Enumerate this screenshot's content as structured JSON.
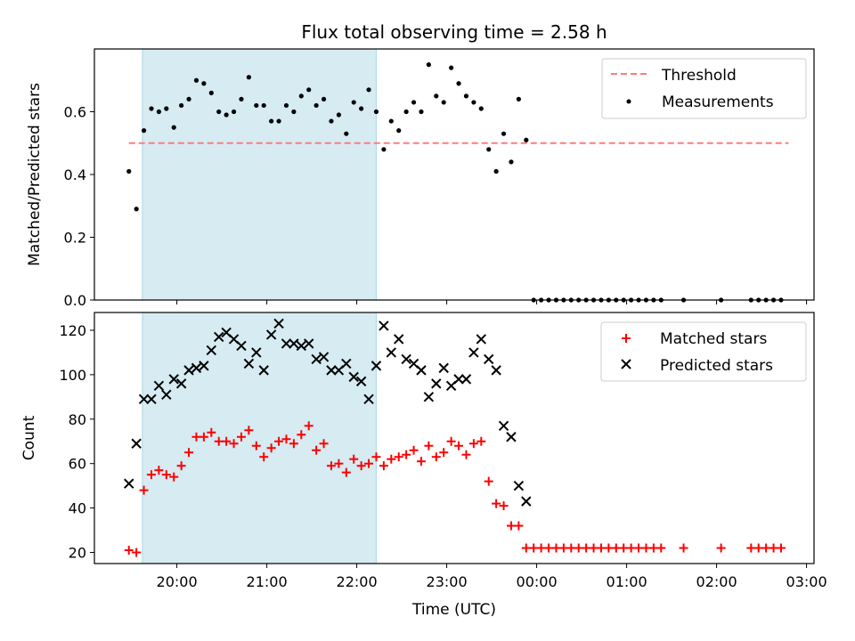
{
  "title": "Flux total observing time = 2.58 h",
  "xlabel": "Time (UTC)",
  "x_tick_labels": [
    "20:00",
    "21:00",
    "22:00",
    "23:00",
    "00:00",
    "01:00",
    "02:00",
    "03:00"
  ],
  "colors": {
    "threshold": "#ff7b7b",
    "measurements": "#000000",
    "matched": "#ff0000",
    "predicted": "#000000",
    "highlight": "#add8e6"
  },
  "chart_data": [
    {
      "type": "scatter",
      "title": "Flux total observing time = 2.58 h",
      "xlabel": "",
      "ylabel": "Matched/Predicted stars",
      "xlim": [
        "19:05",
        "03:05"
      ],
      "ylim": [
        0,
        0.8
      ],
      "y_ticks": [
        "0.0",
        "0.2",
        "0.4",
        "0.6"
      ],
      "x_tick_labels": [
        "20:00",
        "21:00",
        "22:00",
        "23:00",
        "00:00",
        "01:00",
        "02:00",
        "03:00"
      ],
      "legend_position": "top-right",
      "highlight_span": [
        "19:37",
        "22:13"
      ],
      "threshold": {
        "name": "Threshold",
        "value": 0.5,
        "x_range": [
          "19:28",
          "02:48"
        ]
      },
      "series": [
        {
          "name": "Measurements",
          "points": [
            [
              "19:28",
              0.41
            ],
            [
              "19:33",
              0.29
            ],
            [
              "19:38",
              0.54
            ],
            [
              "19:43",
              0.61
            ],
            [
              "19:48",
              0.6
            ],
            [
              "19:53",
              0.61
            ],
            [
              "19:58",
              0.55
            ],
            [
              "20:03",
              0.62
            ],
            [
              "20:08",
              0.64
            ],
            [
              "20:13",
              0.7
            ],
            [
              "20:18",
              0.69
            ],
            [
              "20:23",
              0.66
            ],
            [
              "20:28",
              0.6
            ],
            [
              "20:33",
              0.59
            ],
            [
              "20:38",
              0.6
            ],
            [
              "20:43",
              0.64
            ],
            [
              "20:48",
              0.71
            ],
            [
              "20:53",
              0.62
            ],
            [
              "20:58",
              0.62
            ],
            [
              "21:03",
              0.57
            ],
            [
              "21:08",
              0.57
            ],
            [
              "21:13",
              0.62
            ],
            [
              "21:18",
              0.6
            ],
            [
              "21:23",
              0.65
            ],
            [
              "21:28",
              0.67
            ],
            [
              "21:33",
              0.62
            ],
            [
              "21:38",
              0.64
            ],
            [
              "21:43",
              0.57
            ],
            [
              "21:48",
              0.59
            ],
            [
              "21:53",
              0.53
            ],
            [
              "21:58",
              0.63
            ],
            [
              "22:03",
              0.61
            ],
            [
              "22:08",
              0.67
            ],
            [
              "22:13",
              0.6
            ],
            [
              "22:18",
              0.48
            ],
            [
              "22:23",
              0.57
            ],
            [
              "22:28",
              0.54
            ],
            [
              "22:33",
              0.6
            ],
            [
              "22:38",
              0.63
            ],
            [
              "22:43",
              0.6
            ],
            [
              "22:48",
              0.75
            ],
            [
              "22:53",
              0.65
            ],
            [
              "22:58",
              0.63
            ],
            [
              "23:03",
              0.74
            ],
            [
              "23:08",
              0.69
            ],
            [
              "23:13",
              0.65
            ],
            [
              "23:18",
              0.63
            ],
            [
              "23:23",
              0.61
            ],
            [
              "23:28",
              0.48
            ],
            [
              "23:33",
              0.41
            ],
            [
              "23:38",
              0.53
            ],
            [
              "23:43",
              0.44
            ],
            [
              "23:48",
              0.64
            ],
            [
              "23:53",
              0.51
            ],
            [
              "23:58",
              0
            ],
            [
              "00:03",
              0
            ],
            [
              "00:08",
              0
            ],
            [
              "00:13",
              0
            ],
            [
              "00:18",
              0
            ],
            [
              "00:23",
              0
            ],
            [
              "00:28",
              0
            ],
            [
              "00:33",
              0
            ],
            [
              "00:38",
              0
            ],
            [
              "00:43",
              0
            ],
            [
              "00:48",
              0
            ],
            [
              "00:53",
              0
            ],
            [
              "00:58",
              0
            ],
            [
              "01:03",
              0
            ],
            [
              "01:08",
              0
            ],
            [
              "01:13",
              0
            ],
            [
              "01:18",
              0
            ],
            [
              "01:23",
              0
            ],
            [
              "01:38",
              0
            ],
            [
              "02:03",
              0
            ],
            [
              "02:23",
              0
            ],
            [
              "02:28",
              0
            ],
            [
              "02:33",
              0
            ],
            [
              "02:38",
              0
            ],
            [
              "02:43",
              0
            ]
          ]
        }
      ]
    },
    {
      "type": "scatter",
      "title": "",
      "xlabel": "Time (UTC)",
      "ylabel": "Count",
      "xlim": [
        "19:05",
        "03:05"
      ],
      "ylim": [
        15,
        128
      ],
      "y_ticks": [
        "20",
        "40",
        "60",
        "80",
        "100",
        "120"
      ],
      "x_tick_labels": [
        "20:00",
        "21:00",
        "22:00",
        "23:00",
        "00:00",
        "01:00",
        "02:00",
        "03:00"
      ],
      "legend_position": "top-right",
      "highlight_span": [
        "19:37",
        "22:13"
      ],
      "series": [
        {
          "name": "Matched stars",
          "marker": "+",
          "points": [
            [
              "19:28",
              21
            ],
            [
              "19:33",
              20
            ],
            [
              "19:38",
              48
            ],
            [
              "19:43",
              55
            ],
            [
              "19:48",
              57
            ],
            [
              "19:53",
              55
            ],
            [
              "19:58",
              54
            ],
            [
              "20:03",
              59
            ],
            [
              "20:08",
              65
            ],
            [
              "20:13",
              72
            ],
            [
              "20:18",
              72
            ],
            [
              "20:23",
              74
            ],
            [
              "20:28",
              70
            ],
            [
              "20:33",
              70
            ],
            [
              "20:38",
              69
            ],
            [
              "20:43",
              72
            ],
            [
              "20:48",
              75
            ],
            [
              "20:53",
              68
            ],
            [
              "20:58",
              63
            ],
            [
              "21:03",
              67
            ],
            [
              "21:08",
              70
            ],
            [
              "21:13",
              71
            ],
            [
              "21:18",
              69
            ],
            [
              "21:23",
              73
            ],
            [
              "21:28",
              77
            ],
            [
              "21:33",
              66
            ],
            [
              "21:38",
              69
            ],
            [
              "21:43",
              59
            ],
            [
              "21:48",
              60
            ],
            [
              "21:53",
              56
            ],
            [
              "21:58",
              62
            ],
            [
              "22:03",
              59
            ],
            [
              "22:08",
              60
            ],
            [
              "22:13",
              63
            ],
            [
              "22:18",
              59
            ],
            [
              "22:23",
              62
            ],
            [
              "22:28",
              63
            ],
            [
              "22:33",
              64
            ],
            [
              "22:38",
              66
            ],
            [
              "22:43",
              61
            ],
            [
              "22:48",
              68
            ],
            [
              "22:53",
              63
            ],
            [
              "22:58",
              65
            ],
            [
              "23:03",
              70
            ],
            [
              "23:08",
              68
            ],
            [
              "23:13",
              64
            ],
            [
              "23:18",
              69
            ],
            [
              "23:23",
              70
            ],
            [
              "23:28",
              52
            ],
            [
              "23:33",
              42
            ],
            [
              "23:38",
              41
            ],
            [
              "23:43",
              32
            ],
            [
              "23:48",
              32
            ],
            [
              "23:53",
              22
            ],
            [
              "23:58",
              22
            ],
            [
              "00:03",
              22
            ],
            [
              "00:08",
              22
            ],
            [
              "00:13",
              22
            ],
            [
              "00:18",
              22
            ],
            [
              "00:23",
              22
            ],
            [
              "00:28",
              22
            ],
            [
              "00:33",
              22
            ],
            [
              "00:38",
              22
            ],
            [
              "00:43",
              22
            ],
            [
              "00:48",
              22
            ],
            [
              "00:53",
              22
            ],
            [
              "00:58",
              22
            ],
            [
              "01:03",
              22
            ],
            [
              "01:08",
              22
            ],
            [
              "01:13",
              22
            ],
            [
              "01:18",
              22
            ],
            [
              "01:23",
              22
            ],
            [
              "01:38",
              22
            ],
            [
              "02:03",
              22
            ],
            [
              "02:23",
              22
            ],
            [
              "02:28",
              22
            ],
            [
              "02:33",
              22
            ],
            [
              "02:38",
              22
            ],
            [
              "02:43",
              22
            ]
          ]
        },
        {
          "name": "Predicted stars",
          "marker": "x",
          "points": [
            [
              "19:28",
              51
            ],
            [
              "19:33",
              69
            ],
            [
              "19:38",
              89
            ],
            [
              "19:43",
              89
            ],
            [
              "19:48",
              95
            ],
            [
              "19:53",
              91
            ],
            [
              "19:58",
              98
            ],
            [
              "20:03",
              96
            ],
            [
              "20:08",
              102
            ],
            [
              "20:13",
              103
            ],
            [
              "20:18",
              104
            ],
            [
              "20:23",
              111
            ],
            [
              "20:28",
              117
            ],
            [
              "20:33",
              119
            ],
            [
              "20:38",
              116
            ],
            [
              "20:43",
              113
            ],
            [
              "20:48",
              105
            ],
            [
              "20:53",
              110
            ],
            [
              "20:58",
              102
            ],
            [
              "21:03",
              118
            ],
            [
              "21:08",
              123
            ],
            [
              "21:13",
              114
            ],
            [
              "21:18",
              114
            ],
            [
              "21:23",
              113
            ],
            [
              "21:28",
              114
            ],
            [
              "21:33",
              107
            ],
            [
              "21:38",
              108
            ],
            [
              "21:43",
              102
            ],
            [
              "21:48",
              102
            ],
            [
              "21:53",
              105
            ],
            [
              "21:58",
              99
            ],
            [
              "22:03",
              97
            ],
            [
              "22:08",
              89
            ],
            [
              "22:13",
              104
            ],
            [
              "22:18",
              122
            ],
            [
              "22:23",
              110
            ],
            [
              "22:28",
              116
            ],
            [
              "22:33",
              107
            ],
            [
              "22:38",
              105
            ],
            [
              "22:43",
              102
            ],
            [
              "22:48",
              90
            ],
            [
              "22:53",
              96
            ],
            [
              "22:58",
              103
            ],
            [
              "23:03",
              95
            ],
            [
              "23:08",
              98
            ],
            [
              "23:13",
              98
            ],
            [
              "23:18",
              110
            ],
            [
              "23:23",
              116
            ],
            [
              "23:28",
              107
            ],
            [
              "23:33",
              102
            ],
            [
              "23:38",
              77
            ],
            [
              "23:43",
              72
            ],
            [
              "23:48",
              50
            ],
            [
              "23:53",
              43
            ]
          ]
        }
      ]
    }
  ]
}
